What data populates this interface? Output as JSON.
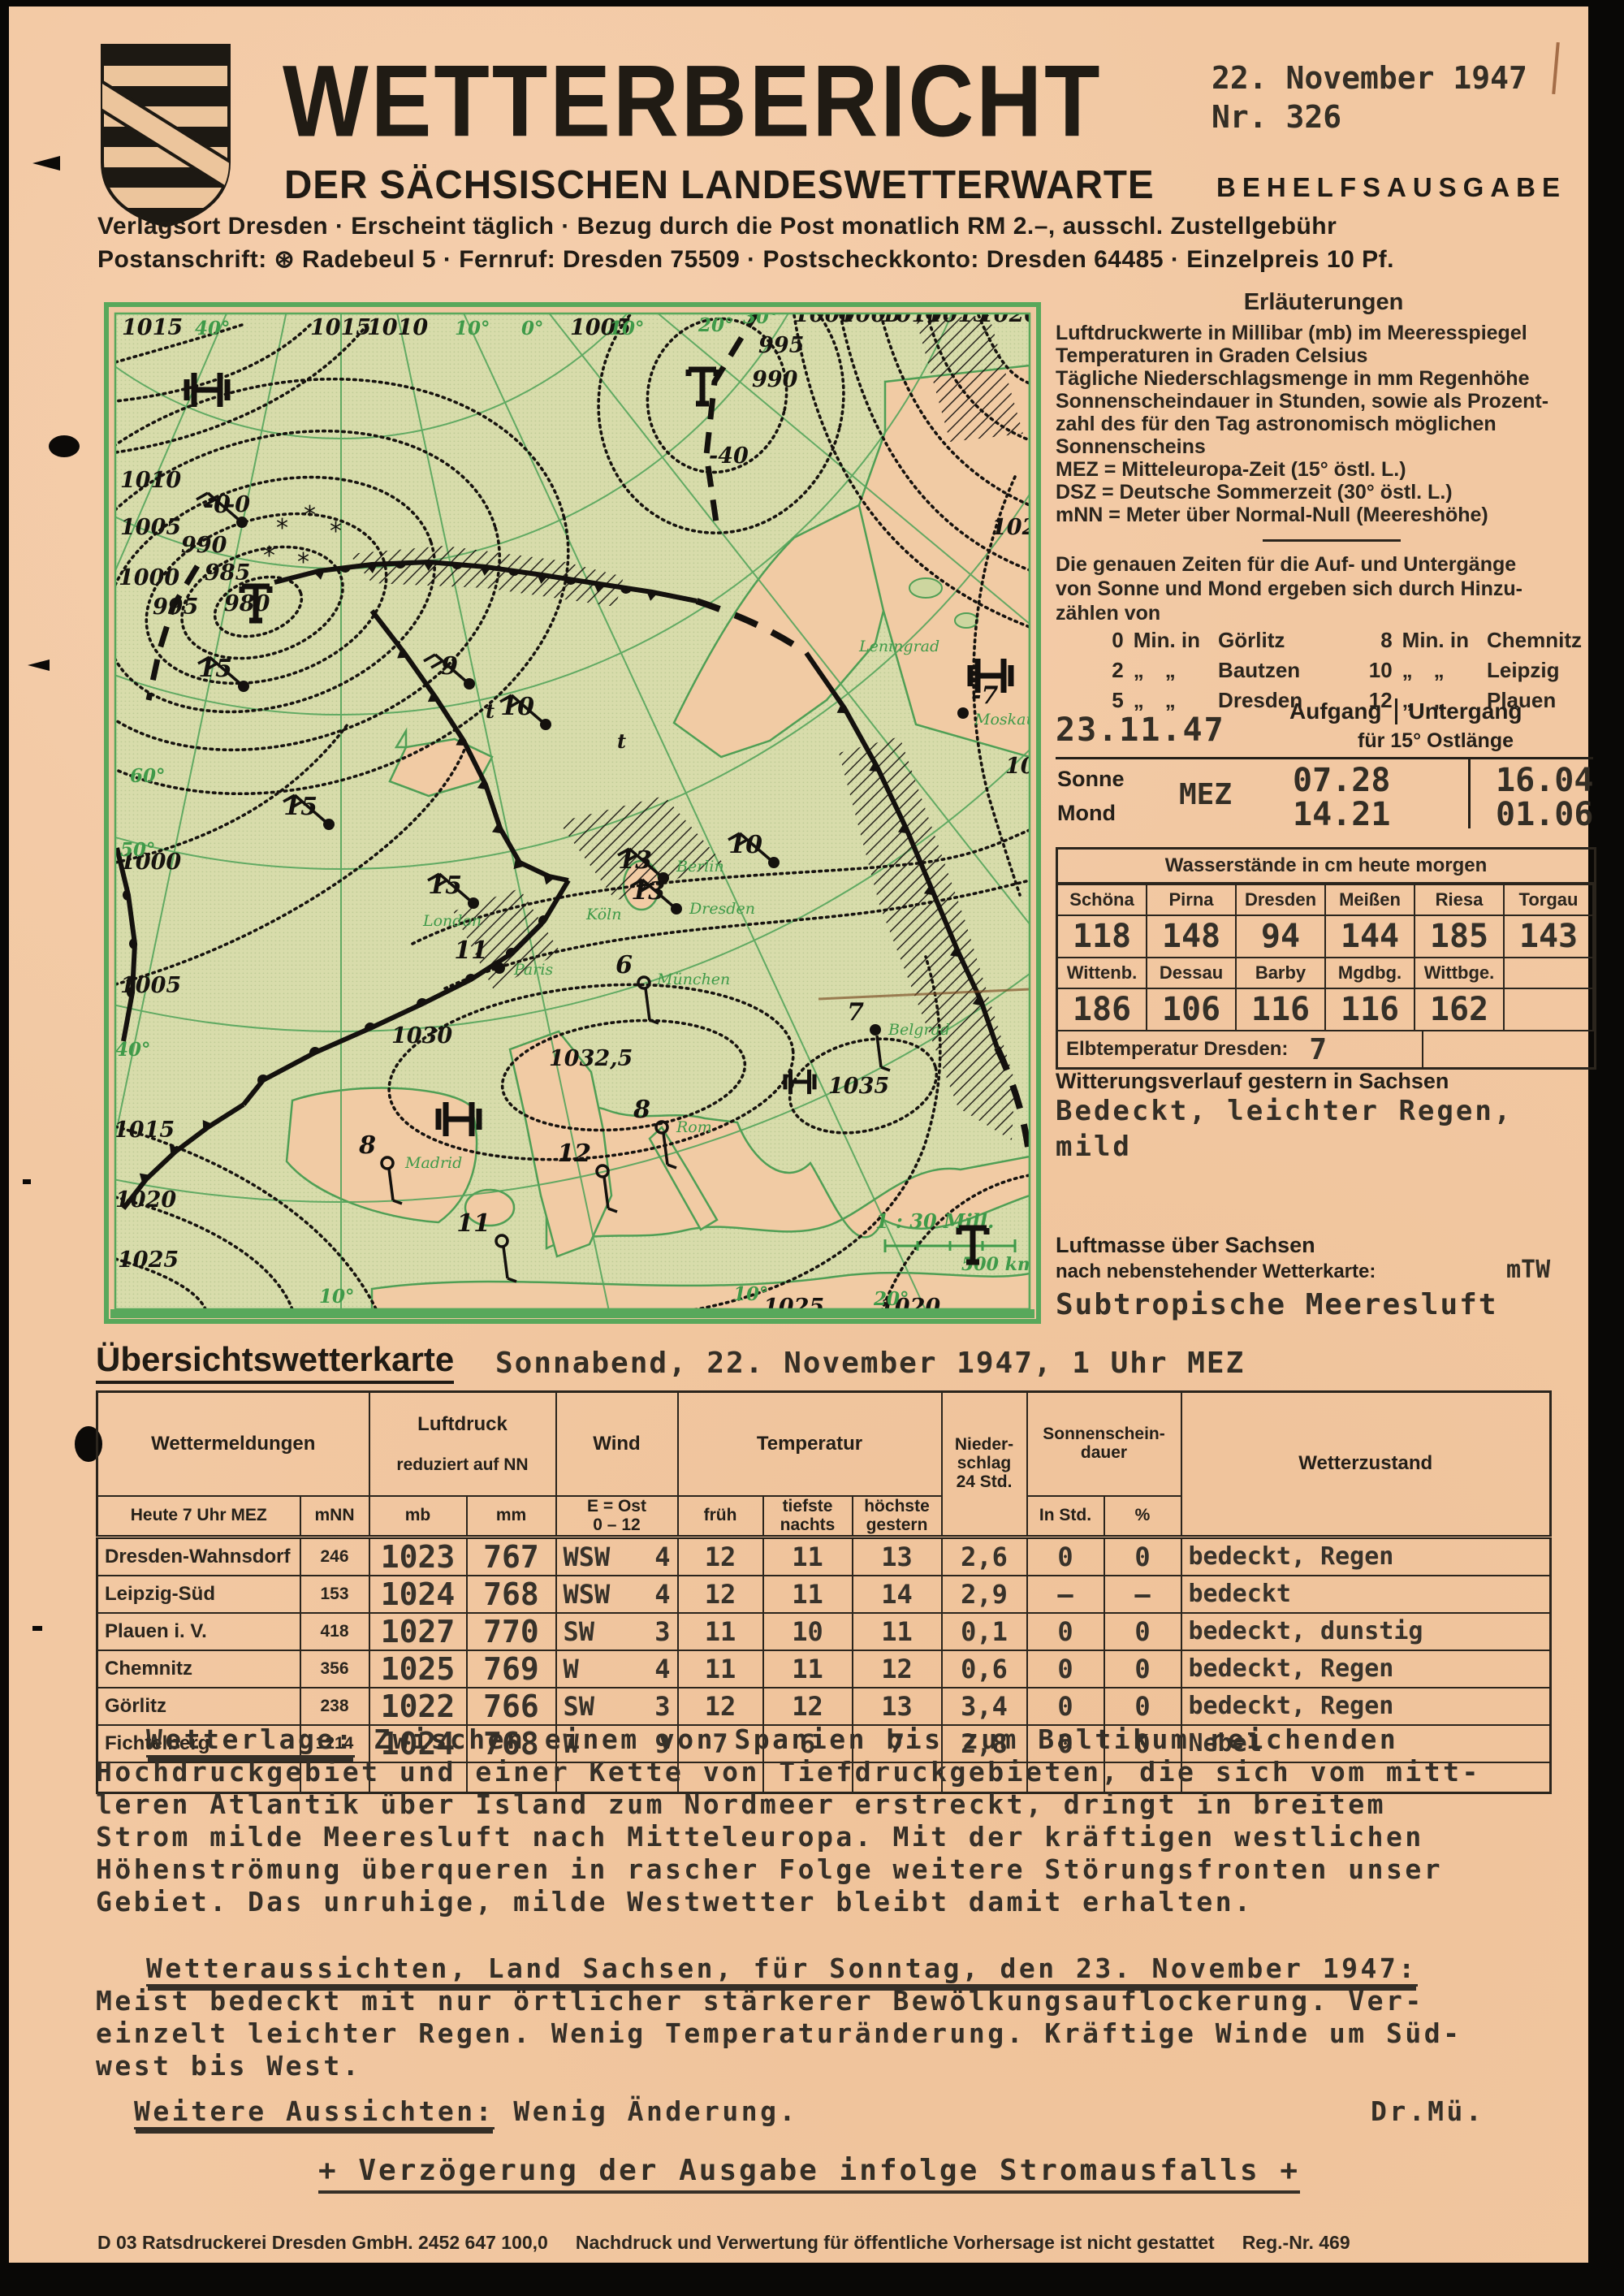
{
  "header": {
    "title": "WETTERBERICHT",
    "subtitle": "DER SÄCHSISCHEN LANDESWETTERWARTE",
    "edition": "BEHELFSAUSGABE",
    "date": "22. November 1947",
    "number": "Nr. 326",
    "imprint1": "Verlagsort Dresden · Erscheint täglich · Bezug durch die Post monatlich RM 2.–, ausschl. Zustellgebühr",
    "imprint2": "Postanschrift: ⊛ Radebeul 5 · Fernruf: Dresden 75509 · Postscheckkonto: Dresden 64485 · Einzelpreis 10 Pf."
  },
  "right": {
    "erl": {
      "heading": "Erläuterungen",
      "lines": [
        "Luftdruckwerte in Millibar (mb) im Meeresspiegel",
        "Temperaturen in Graden Celsius",
        "Tägliche Niederschlagsmenge in mm Regenhöhe",
        "Sonnenscheindauer in Stunden, sowie als Prozent-",
        "zahl des für den Tag astronomisch möglichen",
        "Sonnenscheins",
        "MEZ = Mitteleuropa-Zeit (15° östl. L.)",
        "DSZ = Deutsche Sommerzeit (30° östl. L.)",
        "mNN = Meter über Normal-Null (Meereshöhe)"
      ]
    },
    "note": {
      "lines": [
        "Die genauen Zeiten für die Auf- und Untergänge",
        "von Sonne und Mond ergeben sich durch Hinzu-",
        "zählen von"
      ]
    },
    "offsets": {
      "rows": [
        {
          "ln": "0",
          "lsep": "Min. in",
          "lcity": "Görlitz",
          "rn": "8",
          "rsep": "Min. in",
          "rcity": "Chemnitz"
        },
        {
          "ln": "2",
          "lsep": "„ „",
          "lcity": "Bautzen",
          "rn": "10",
          "rsep": "„ „",
          "rcity": "Leipzig"
        },
        {
          "ln": "5",
          "lsep": "„ „",
          "lcity": "Dresden",
          "rn": "12",
          "rsep": "„ „",
          "rcity": "Plauen"
        }
      ]
    },
    "rise": {
      "date": "23.11.47",
      "aufgang": "Aufgang",
      "untergang": "Untergang",
      "subhead": "für 15° Ostlänge",
      "tz": "MEZ",
      "rows": [
        {
          "body": "Sonne",
          "rise": "07.28",
          "set": "16.04"
        },
        {
          "body": "Mond",
          "rise": "14.21",
          "set": "01.06"
        }
      ]
    },
    "water": {
      "title": "Wasserstände in cm heute morgen",
      "headers1": [
        "Schöna",
        "Pirna",
        "Dresden",
        "Meißen",
        "Riesa",
        "Torgau"
      ],
      "values1": [
        "118",
        "148",
        "94",
        "144",
        "185",
        "143"
      ],
      "headers2": [
        "Wittenb.",
        "Dessau",
        "Barby",
        "Mgdbg.",
        "Wittbge.",
        ""
      ],
      "values2": [
        "186",
        "106",
        "116",
        "116",
        "162",
        ""
      ],
      "elbe_label": "Elbtemperatur Dresden:",
      "elbe_value": "7"
    },
    "witterung": {
      "heading": "Witterungsverlauf gestern in Sachsen",
      "line1": "Bedeckt, leichter Regen,",
      "line2": "mild"
    },
    "luftmasse": {
      "heading": "Luftmasse über Sachsen",
      "sub": "nach nebenstehender Wetterkarte:",
      "code": "mTW",
      "text": "Subtropische Meeresluft"
    }
  },
  "uebersicht": {
    "heading": "Übersichtswetterkarte",
    "datetime": "Sonnabend, 22. November 1947, 1 Uhr MEZ"
  },
  "table": {
    "h": {
      "wm": "Wettermeldungen",
      "heute": "Heute 7 Uhr MEZ",
      "mnn": "mNN",
      "luftdruck": "Luftdruck",
      "luftdruck2": "reduziert auf NN",
      "mb": "mb",
      "mm": "mm",
      "wind": "Wind",
      "eost": "E = Ost\n0 – 12",
      "temperatur": "Temperatur",
      "frueh": "früh",
      "tief": "tiefste\nnachts",
      "hoech": "höchste\ngestern",
      "nieder": "Nieder-\nschlag\n24 Std.",
      "sonnen": "Sonnenschein-\ndauer",
      "instd": "In Std.",
      "pct": "%",
      "wz": "Wetterzustand"
    },
    "rows": [
      {
        "station": "Dresden-Wahnsdorf",
        "mnn": "246",
        "mb": "1023",
        "mm": "767",
        "wdir": "WSW",
        "wf": "4",
        "frueh": "12",
        "tief": "11",
        "hoech": "13",
        "nieder": "2,6",
        "instd": "0",
        "pct": "0",
        "zustand": "bedeckt, Regen"
      },
      {
        "station": "Leipzig-Süd",
        "mnn": "153",
        "mb": "1024",
        "mm": "768",
        "wdir": "WSW",
        "wf": "4",
        "frueh": "12",
        "tief": "11",
        "hoech": "14",
        "nieder": "2,9",
        "instd": "–",
        "pct": "–",
        "zustand": "bedeckt"
      },
      {
        "station": "Plauen i. V.",
        "mnn": "418",
        "mb": "1027",
        "mm": "770",
        "wdir": "SW",
        "wf": "3",
        "frueh": "11",
        "tief": "10",
        "hoech": "11",
        "nieder": "0,1",
        "instd": "0",
        "pct": "0",
        "zustand": "bedeckt, dunstig"
      },
      {
        "station": "Chemnitz",
        "mnn": "356",
        "mb": "1025",
        "mm": "769",
        "wdir": "W",
        "wf": "4",
        "frueh": "11",
        "tief": "11",
        "hoech": "12",
        "nieder": "0,6",
        "instd": "0",
        "pct": "0",
        "zustand": "bedeckt, Regen"
      },
      {
        "station": "Görlitz",
        "mnn": "238",
        "mb": "1022",
        "mm": "766",
        "wdir": "SW",
        "wf": "3",
        "frueh": "12",
        "tief": "12",
        "hoech": "13",
        "nieder": "3,4",
        "instd": "0",
        "pct": "0",
        "zustand": "bedeckt, Regen"
      },
      {
        "station": "Fichtelberg",
        "mnn": "1214",
        "mb": "1024",
        "mm": "768",
        "wdir": "W",
        "wf": "9",
        "frueh": "7",
        "tief": "6",
        "hoech": "7",
        "nieder": "2,8",
        "instd": "0",
        "pct": "0",
        "zustand": "Nebel"
      }
    ]
  },
  "wetterlage": {
    "label": "Wetterlage:",
    "lines": [
      "Zwischen einem von Spanien bis zum Baltikum reichenden",
      "Hochdruckgebiet und einer Kette von Tiefdruckgebieten, die sich vom mitt-",
      "leren Atlantik über Island zum Nordmeer erstreckt, dringt in breitem",
      "Strom milde Meeresluft nach Mitteleuropa. Mit der kräftigen westlichen",
      "Höhenströmung überqueren in rascher Folge weitere Störungsfronten unser",
      "Gebiet. Das unruhige, milde Westwetter bleibt damit erhalten."
    ]
  },
  "aussichten": {
    "heading": "Wetteraussichten, Land Sachsen, für Sonntag, den 23. November 1947:",
    "lines": [
      "Meist bedeckt mit nur örtlicher stärkerer Bewölkungsauflockerung. Ver-",
      "einzelt leichter Regen. Wenig Temperaturänderung. Kräftige Winde um Süd-",
      "west bis West."
    ]
  },
  "weitere": {
    "label": "Weitere Aussichten:",
    "text": "Wenig Änderung.",
    "signature": "Dr.Mü."
  },
  "delay_note": "+ Verzögerung der Ausgabe infolge Stromausfalls +",
  "footer": {
    "part1": "D 03 Ratsdruckerei Dresden GmbH. 2452 647 100,0",
    "part2": "Nachdruck und Verwertung für öffentliche Vorhersage ist nicht gestattet",
    "part3": "Reg.-Nr. 469"
  },
  "map": {
    "labels": [
      "1015",
      "40°",
      "1015",
      "1010",
      "10°",
      "0°",
      "1005",
      "10°",
      "20°",
      "30°",
      "1000",
      "1005",
      "1010",
      "1015",
      "1020",
      "1010",
      "1005",
      "1000",
      "995",
      "990",
      "985",
      "980",
      "-0",
      "995",
      "990",
      "1025",
      "1025",
      "1000",
      "1005",
      "1015",
      "1020",
      "1025",
      "50°",
      "40°",
      "60°",
      "1030",
      "1032,5",
      "1035",
      "1025",
      "1020",
      "10°",
      "10°",
      "20°",
      "t",
      "t",
      "-40"
    ],
    "stations": [
      {
        "temp": "15",
        "city": ""
      },
      {
        "temp": "15",
        "city": ""
      },
      {
        "temp": "9",
        "city": ""
      },
      {
        "temp": "10",
        "city": ""
      },
      {
        "temp": "15",
        "city": "London"
      },
      {
        "temp": "13",
        "city": "Berlin"
      },
      {
        "temp": "10",
        "city": ""
      },
      {
        "temp": "13",
        "city": "Dresden"
      },
      {
        "temp": "11",
        "city": "Paris"
      },
      {
        "temp": "6",
        "city": "München"
      },
      {
        "temp": "7",
        "city": "Belgrad"
      },
      {
        "temp": "8",
        "city": "Madrid"
      },
      {
        "temp": "8",
        "city": "Rom"
      },
      {
        "temp": "12",
        "city": ""
      },
      {
        "temp": "11",
        "city": ""
      },
      {
        "temp": "-7",
        "city": "Moskau"
      },
      {
        "temp": "-0",
        "city": ""
      }
    ],
    "centers": [
      "H",
      "T",
      "T",
      "H",
      "H",
      "H",
      "T"
    ],
    "city_labels": [
      "Köln",
      "Leningrad"
    ],
    "scale1": "1 : 30 Mill.",
    "scale2": "500 km",
    "colors": {
      "green": "#3f9a49",
      "frame": "#58a85b",
      "sea": "#d8dcab",
      "ink": "#16130f"
    }
  }
}
